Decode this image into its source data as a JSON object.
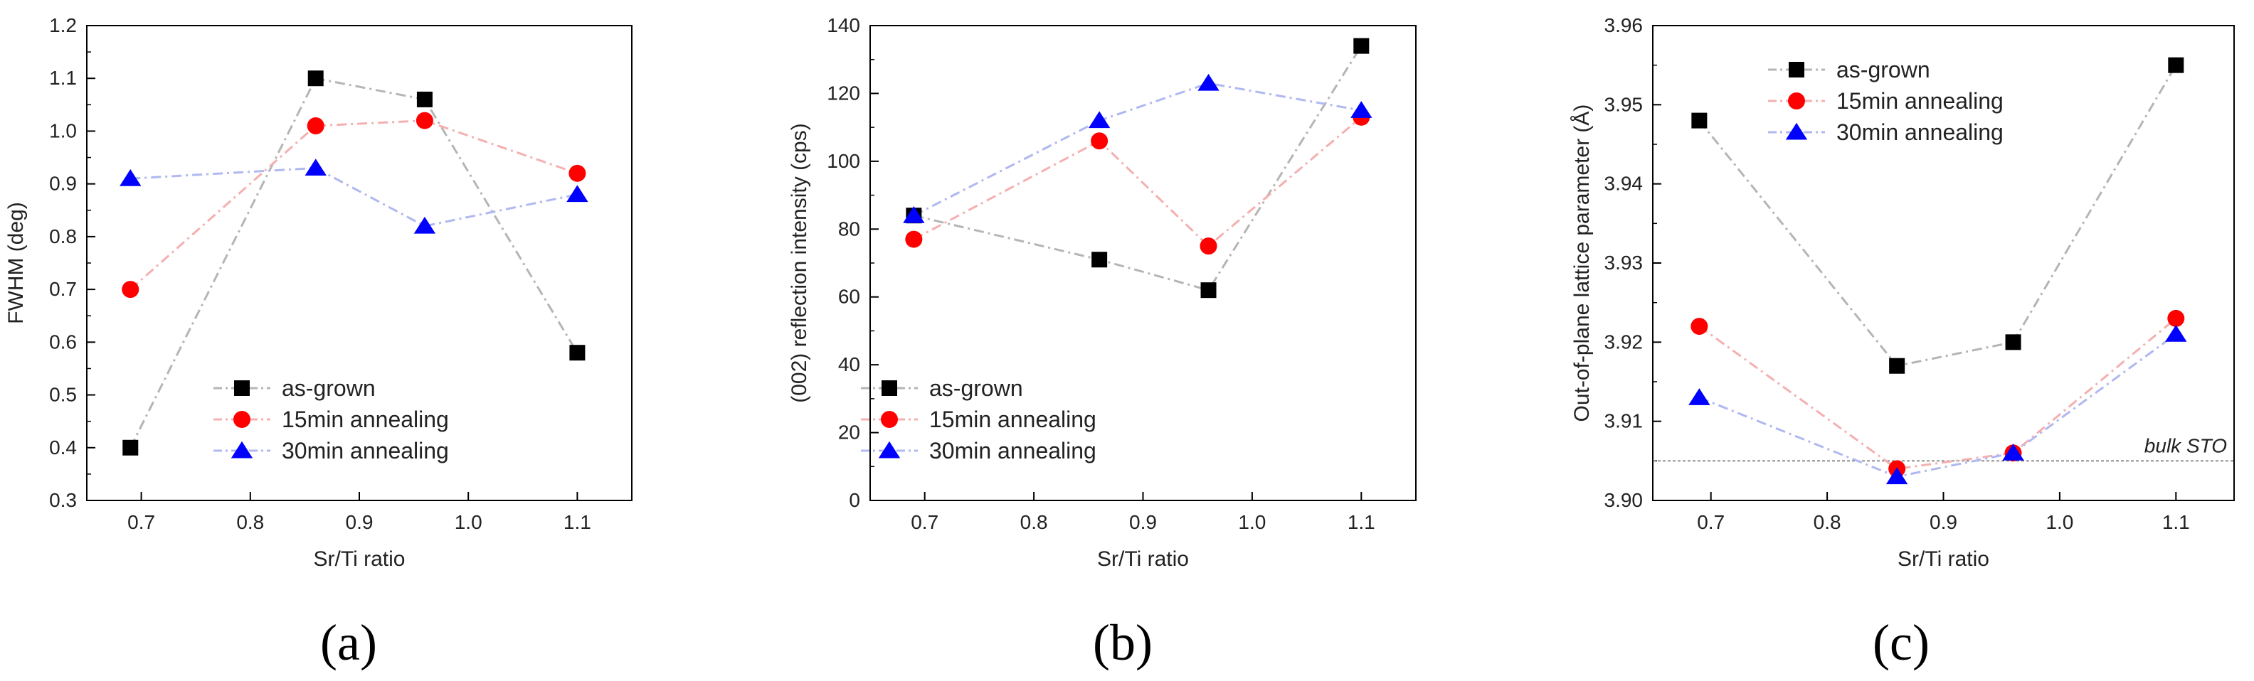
{
  "series_styles": [
    {
      "name": "as-grown",
      "marker": "square",
      "marker_color": "#000000",
      "line_color": "#b5b5b5"
    },
    {
      "name": "15min annealing",
      "marker": "circle",
      "marker_color": "#ff0000",
      "line_color": "#f4b0b0"
    },
    {
      "name": "30min annealing",
      "marker": "triangle",
      "marker_color": "#0000ff",
      "line_color": "#b0b8f0"
    }
  ],
  "chart_data": [
    {
      "panel_label": "(a)",
      "type": "line",
      "xlabel": "Sr/Ti ratio",
      "ylabel": "FWHM (deg)",
      "xlim": [
        0.65,
        1.15
      ],
      "ylim": [
        0.3,
        1.2
      ],
      "xticks": [
        0.7,
        0.8,
        0.9,
        1.0,
        1.1
      ],
      "xtick_labels": [
        "0.7",
        "0.8",
        "0.9",
        "1.0",
        "1.1"
      ],
      "yticks": [
        0.3,
        0.4,
        0.5,
        0.6,
        0.7,
        0.8,
        0.9,
        1.0,
        1.1,
        1.2
      ],
      "ytick_labels": [
        "0.3",
        "0.4",
        "0.5",
        "0.6",
        "0.7",
        "0.8",
        "0.9",
        "1.0",
        "1.1",
        "1.2"
      ],
      "x": [
        0.69,
        0.86,
        0.96,
        1.1
      ],
      "series": [
        {
          "name": "as-grown",
          "values": [
            0.4,
            1.1,
            1.06,
            0.58
          ]
        },
        {
          "name": "15min annealing",
          "values": [
            0.7,
            1.01,
            1.02,
            0.92
          ]
        },
        {
          "name": "30min annealing",
          "values": [
            0.91,
            0.93,
            0.82,
            0.88
          ]
        }
      ],
      "legend": {
        "position": "lower-center",
        "entries": [
          "as-grown",
          "15min annealing",
          "30min annealing"
        ]
      }
    },
    {
      "panel_label": "(b)",
      "type": "line",
      "xlabel": "Sr/Ti ratio",
      "ylabel": "(002) reflection intensity (cps)",
      "xlim": [
        0.65,
        1.15
      ],
      "ylim": [
        0,
        140
      ],
      "xticks": [
        0.7,
        0.8,
        0.9,
        1.0,
        1.1
      ],
      "xtick_labels": [
        "0.7",
        "0.8",
        "0.9",
        "1.0",
        "1.1"
      ],
      "yticks": [
        0,
        20,
        40,
        60,
        80,
        100,
        120,
        140
      ],
      "ytick_labels": [
        "0",
        "20",
        "40",
        "60",
        "80",
        "100",
        "120",
        "140"
      ],
      "x": [
        0.69,
        0.86,
        0.96,
        1.1
      ],
      "series": [
        {
          "name": "as-grown",
          "values": [
            84,
            71,
            62,
            134
          ]
        },
        {
          "name": "15min annealing",
          "values": [
            77,
            106,
            75,
            113
          ]
        },
        {
          "name": "30min annealing",
          "values": [
            84,
            112,
            123,
            115
          ]
        }
      ],
      "legend": {
        "position": "lower-left",
        "entries": [
          "as-grown",
          "15min annealing",
          "30min annealing"
        ]
      }
    },
    {
      "panel_label": "(c)",
      "type": "line",
      "xlabel": "Sr/Ti ratio",
      "ylabel": "Out-of-plane lattice parameter (Å)",
      "xlim": [
        0.65,
        1.15
      ],
      "ylim": [
        3.9,
        3.96
      ],
      "xticks": [
        0.7,
        0.8,
        0.9,
        1.0,
        1.1
      ],
      "xtick_labels": [
        "0.7",
        "0.8",
        "0.9",
        "1.0",
        "1.1"
      ],
      "yticks": [
        3.9,
        3.91,
        3.92,
        3.93,
        3.94,
        3.95,
        3.96
      ],
      "ytick_labels": [
        "3.90",
        "3.91",
        "3.92",
        "3.93",
        "3.94",
        "3.95",
        "3.96"
      ],
      "x": [
        0.69,
        0.86,
        0.96,
        1.1
      ],
      "series": [
        {
          "name": "as-grown",
          "values": [
            3.948,
            3.917,
            3.92,
            3.955
          ]
        },
        {
          "name": "15min annealing",
          "values": [
            3.922,
            3.904,
            3.906,
            3.923
          ]
        },
        {
          "name": "30min annealing",
          "values": [
            3.913,
            3.903,
            3.906,
            3.921
          ]
        }
      ],
      "reference_line": {
        "label": "bulk STO",
        "value": 3.905
      },
      "legend": {
        "position": "upper-left",
        "entries": [
          "as-grown",
          "15min annealing",
          "30min annealing"
        ]
      }
    }
  ]
}
